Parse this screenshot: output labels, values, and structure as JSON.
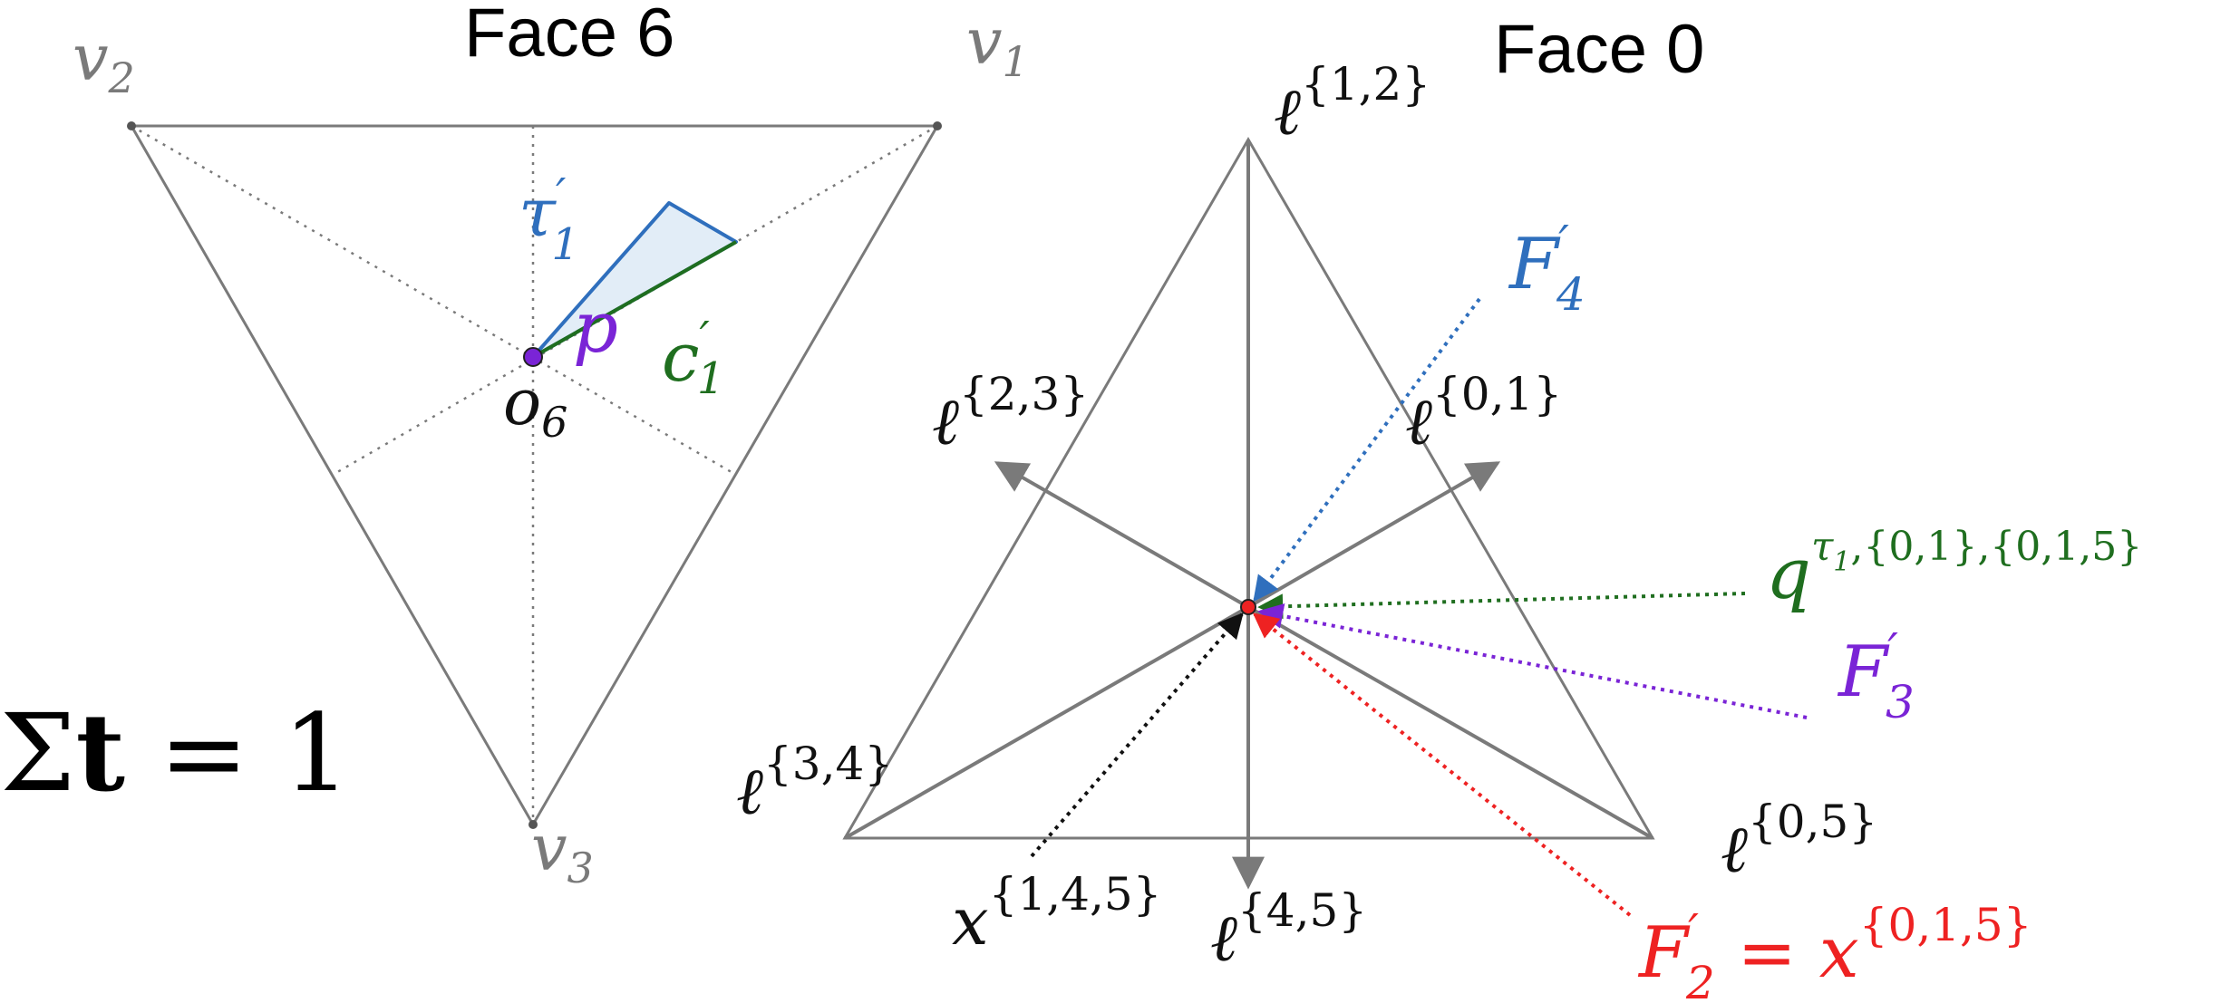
{
  "colors": {
    "gray": "#7a7a7a",
    "black": "#111111",
    "blue": "#2f6fbd",
    "green": "#1f6e1f",
    "purple": "#7a24d6",
    "red": "#ee2222",
    "fill_blue": "#e2edf7"
  },
  "face6": {
    "title": "Face 6",
    "v1": {
      "base": "v",
      "sub": "1"
    },
    "v2": {
      "base": "v",
      "sub": "2"
    },
    "v3": {
      "base": "v",
      "sub": "3"
    },
    "o6": {
      "base": "o",
      "sub": "6"
    },
    "tau": {
      "base": "τ",
      "prime": "′",
      "sub": "1"
    },
    "c": {
      "base": "c",
      "prime": "′",
      "sub": "1"
    },
    "p": "p"
  },
  "sum_label": {
    "sigma": "Σ",
    "bold": "t",
    "rest": " = 1"
  },
  "face0": {
    "title": "Face 0",
    "l12": {
      "base": "ℓ",
      "sup": "{1,2}"
    },
    "l23": {
      "base": "ℓ",
      "sup": "{2,3}"
    },
    "l01": {
      "base": "ℓ",
      "sup": "{0,1}"
    },
    "l34": {
      "base": "ℓ",
      "sup": "{3,4}"
    },
    "l05": {
      "base": "ℓ",
      "sup": "{0,5}"
    },
    "l45": {
      "base": "ℓ",
      "sup": "{4,5}"
    },
    "x145": {
      "base": "x",
      "sup": "{1,4,5}"
    },
    "F4": {
      "base": "F",
      "prime": "′",
      "sub": "4"
    },
    "F3": {
      "base": "F",
      "prime": "′",
      "sub": "3"
    },
    "q": {
      "base": "q",
      "sup_tau": "τ",
      "sup_tau_sub": "1",
      "sup_rest": ",{0,1},{0,1,5}"
    },
    "F2": {
      "base": "F",
      "prime": "′",
      "sub": "2",
      "eq": " = ",
      "x": "x",
      "xsup": "{0,1,5}"
    }
  }
}
